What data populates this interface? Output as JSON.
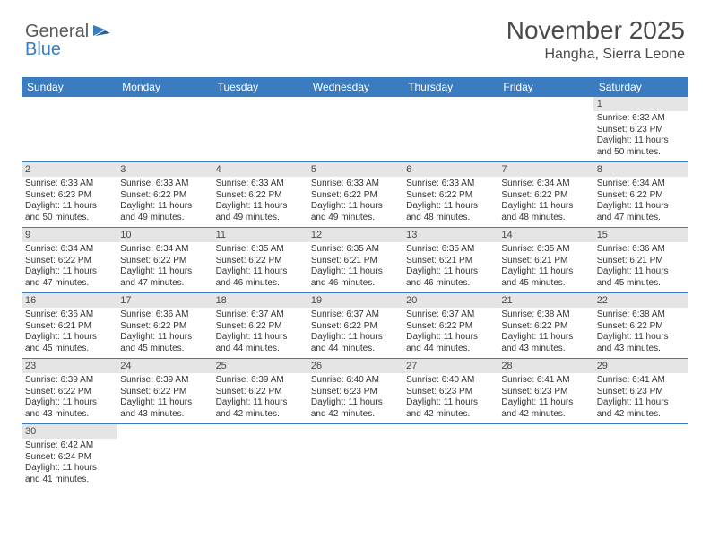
{
  "logo": {
    "text1": "General",
    "text2": "Blue"
  },
  "title": "November 2025",
  "location": "Hangha, Sierra Leone",
  "colors": {
    "header_bg": "#3a7cbf",
    "header_text": "#ffffff",
    "daynum_bg": "#e5e5e5",
    "text": "#4a4a4a",
    "row_border": "#3a7cbf"
  },
  "daysOfWeek": [
    "Sunday",
    "Monday",
    "Tuesday",
    "Wednesday",
    "Thursday",
    "Friday",
    "Saturday"
  ],
  "weeks": [
    [
      {
        "n": "",
        "lines": []
      },
      {
        "n": "",
        "lines": []
      },
      {
        "n": "",
        "lines": []
      },
      {
        "n": "",
        "lines": []
      },
      {
        "n": "",
        "lines": []
      },
      {
        "n": "",
        "lines": []
      },
      {
        "n": "1",
        "lines": [
          "Sunrise: 6:32 AM",
          "Sunset: 6:23 PM",
          "Daylight: 11 hours and 50 minutes."
        ]
      }
    ],
    [
      {
        "n": "2",
        "lines": [
          "Sunrise: 6:33 AM",
          "Sunset: 6:23 PM",
          "Daylight: 11 hours and 50 minutes."
        ]
      },
      {
        "n": "3",
        "lines": [
          "Sunrise: 6:33 AM",
          "Sunset: 6:22 PM",
          "Daylight: 11 hours and 49 minutes."
        ]
      },
      {
        "n": "4",
        "lines": [
          "Sunrise: 6:33 AM",
          "Sunset: 6:22 PM",
          "Daylight: 11 hours and 49 minutes."
        ]
      },
      {
        "n": "5",
        "lines": [
          "Sunrise: 6:33 AM",
          "Sunset: 6:22 PM",
          "Daylight: 11 hours and 49 minutes."
        ]
      },
      {
        "n": "6",
        "lines": [
          "Sunrise: 6:33 AM",
          "Sunset: 6:22 PM",
          "Daylight: 11 hours and 48 minutes."
        ]
      },
      {
        "n": "7",
        "lines": [
          "Sunrise: 6:34 AM",
          "Sunset: 6:22 PM",
          "Daylight: 11 hours and 48 minutes."
        ]
      },
      {
        "n": "8",
        "lines": [
          "Sunrise: 6:34 AM",
          "Sunset: 6:22 PM",
          "Daylight: 11 hours and 47 minutes."
        ]
      }
    ],
    [
      {
        "n": "9",
        "lines": [
          "Sunrise: 6:34 AM",
          "Sunset: 6:22 PM",
          "Daylight: 11 hours and 47 minutes."
        ]
      },
      {
        "n": "10",
        "lines": [
          "Sunrise: 6:34 AM",
          "Sunset: 6:22 PM",
          "Daylight: 11 hours and 47 minutes."
        ]
      },
      {
        "n": "11",
        "lines": [
          "Sunrise: 6:35 AM",
          "Sunset: 6:22 PM",
          "Daylight: 11 hours and 46 minutes."
        ]
      },
      {
        "n": "12",
        "lines": [
          "Sunrise: 6:35 AM",
          "Sunset: 6:21 PM",
          "Daylight: 11 hours and 46 minutes."
        ]
      },
      {
        "n": "13",
        "lines": [
          "Sunrise: 6:35 AM",
          "Sunset: 6:21 PM",
          "Daylight: 11 hours and 46 minutes."
        ]
      },
      {
        "n": "14",
        "lines": [
          "Sunrise: 6:35 AM",
          "Sunset: 6:21 PM",
          "Daylight: 11 hours and 45 minutes."
        ]
      },
      {
        "n": "15",
        "lines": [
          "Sunrise: 6:36 AM",
          "Sunset: 6:21 PM",
          "Daylight: 11 hours and 45 minutes."
        ]
      }
    ],
    [
      {
        "n": "16",
        "lines": [
          "Sunrise: 6:36 AM",
          "Sunset: 6:21 PM",
          "Daylight: 11 hours and 45 minutes."
        ]
      },
      {
        "n": "17",
        "lines": [
          "Sunrise: 6:36 AM",
          "Sunset: 6:22 PM",
          "Daylight: 11 hours and 45 minutes."
        ]
      },
      {
        "n": "18",
        "lines": [
          "Sunrise: 6:37 AM",
          "Sunset: 6:22 PM",
          "Daylight: 11 hours and 44 minutes."
        ]
      },
      {
        "n": "19",
        "lines": [
          "Sunrise: 6:37 AM",
          "Sunset: 6:22 PM",
          "Daylight: 11 hours and 44 minutes."
        ]
      },
      {
        "n": "20",
        "lines": [
          "Sunrise: 6:37 AM",
          "Sunset: 6:22 PM",
          "Daylight: 11 hours and 44 minutes."
        ]
      },
      {
        "n": "21",
        "lines": [
          "Sunrise: 6:38 AM",
          "Sunset: 6:22 PM",
          "Daylight: 11 hours and 43 minutes."
        ]
      },
      {
        "n": "22",
        "lines": [
          "Sunrise: 6:38 AM",
          "Sunset: 6:22 PM",
          "Daylight: 11 hours and 43 minutes."
        ]
      }
    ],
    [
      {
        "n": "23",
        "lines": [
          "Sunrise: 6:39 AM",
          "Sunset: 6:22 PM",
          "Daylight: 11 hours and 43 minutes."
        ]
      },
      {
        "n": "24",
        "lines": [
          "Sunrise: 6:39 AM",
          "Sunset: 6:22 PM",
          "Daylight: 11 hours and 43 minutes."
        ]
      },
      {
        "n": "25",
        "lines": [
          "Sunrise: 6:39 AM",
          "Sunset: 6:22 PM",
          "Daylight: 11 hours and 42 minutes."
        ]
      },
      {
        "n": "26",
        "lines": [
          "Sunrise: 6:40 AM",
          "Sunset: 6:23 PM",
          "Daylight: 11 hours and 42 minutes."
        ]
      },
      {
        "n": "27",
        "lines": [
          "Sunrise: 6:40 AM",
          "Sunset: 6:23 PM",
          "Daylight: 11 hours and 42 minutes."
        ]
      },
      {
        "n": "28",
        "lines": [
          "Sunrise: 6:41 AM",
          "Sunset: 6:23 PM",
          "Daylight: 11 hours and 42 minutes."
        ]
      },
      {
        "n": "29",
        "lines": [
          "Sunrise: 6:41 AM",
          "Sunset: 6:23 PM",
          "Daylight: 11 hours and 42 minutes."
        ]
      }
    ],
    [
      {
        "n": "30",
        "lines": [
          "Sunrise: 6:42 AM",
          "Sunset: 6:24 PM",
          "Daylight: 11 hours and 41 minutes."
        ]
      },
      {
        "n": "",
        "lines": []
      },
      {
        "n": "",
        "lines": []
      },
      {
        "n": "",
        "lines": []
      },
      {
        "n": "",
        "lines": []
      },
      {
        "n": "",
        "lines": []
      },
      {
        "n": "",
        "lines": []
      }
    ]
  ]
}
